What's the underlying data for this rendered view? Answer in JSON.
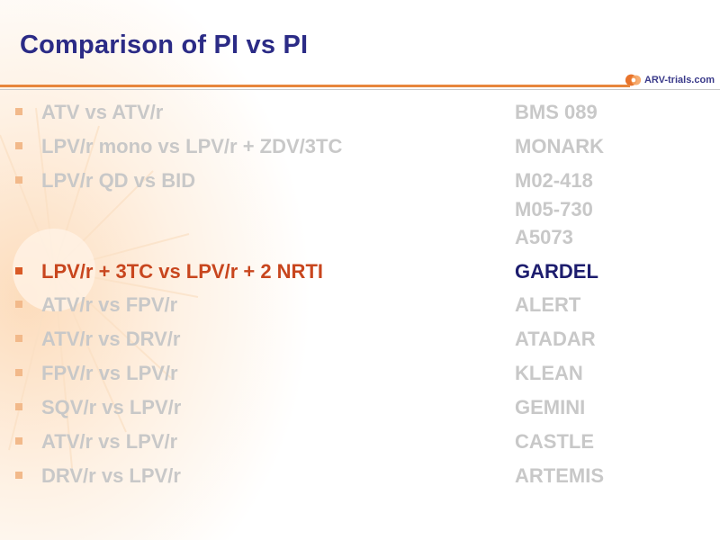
{
  "slide": {
    "title": "Comparison of PI vs PI",
    "logo_text": "ARV-trials.com",
    "colors": {
      "title": "#2b2b86",
      "accent_rule": "#e7863c",
      "dim_text": "#c8c8c8",
      "highlight_text": "#c8461e",
      "highlight_study": "#1d1d6e"
    }
  },
  "rows": [
    {
      "label": "ATV vs ATV/r",
      "study": "BMS 089",
      "highlight": false
    },
    {
      "label": "LPV/r mono vs LPV/r + ZDV/3TC",
      "study": "MONARK",
      "highlight": false
    },
    {
      "label": "LPV/r QD vs BID",
      "study": "M02-418",
      "study_extra": [
        "M05-730",
        "A5073"
      ],
      "highlight": false
    },
    {
      "label": "LPV/r + 3TC vs LPV/r + 2 NRTI",
      "study": "GARDEL",
      "highlight": true
    },
    {
      "label": "ATV/r vs FPV/r",
      "study": "ALERT",
      "highlight": false
    },
    {
      "label": "ATV/r vs DRV/r",
      "study": "ATADAR",
      "highlight": false
    },
    {
      "label": "FPV/r vs LPV/r",
      "study": "KLEAN",
      "highlight": false
    },
    {
      "label": "SQV/r vs LPV/r",
      "study": "GEMINI",
      "highlight": false
    },
    {
      "label": "ATV/r vs LPV/r",
      "study": "CASTLE",
      "highlight": false
    },
    {
      "label": "DRV/r vs LPV/r",
      "study": "ARTEMIS",
      "highlight": false
    }
  ]
}
